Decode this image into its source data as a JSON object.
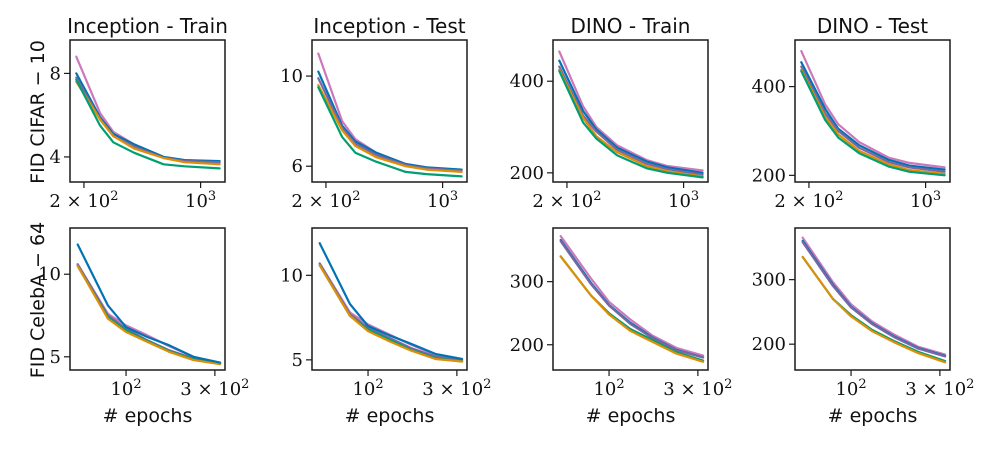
{
  "figure": {
    "row_labels": [
      "FID CIFAR − 10",
      "FID CelebA − 64"
    ],
    "xlabel": "# epochs",
    "colors": {
      "pink": "#cc78bc",
      "blue": "#0173b2",
      "purple": "#7a68a6",
      "green": "#029e73",
      "orange": "#de8f05"
    }
  },
  "chart_data": [
    {
      "id": "cifar-inception-train",
      "type": "line",
      "title": "Inception - Train",
      "xscale": "log",
      "xlim": [
        165,
        1400
      ],
      "ylim": [
        2.8,
        9.6
      ],
      "xticks": [
        {
          "v": 200,
          "label": "2 × 10²"
        },
        {
          "v": 1000,
          "label": "10³"
        }
      ],
      "yticks": [
        {
          "v": 4,
          "label": "4"
        },
        {
          "v": 8,
          "label": "8"
        }
      ],
      "x": [
        180,
        250,
        300,
        400,
        600,
        800,
        1300
      ],
      "series": [
        {
          "name": "pink",
          "color": "#cc78bc",
          "values": [
            8.8,
            6.1,
            5.2,
            4.6,
            4.0,
            3.85,
            3.7
          ]
        },
        {
          "name": "blue",
          "color": "#0173b2",
          "values": [
            8.0,
            5.9,
            5.1,
            4.6,
            4.0,
            3.85,
            3.8
          ]
        },
        {
          "name": "purple",
          "color": "#7a68a6",
          "values": [
            7.8,
            5.8,
            5.0,
            4.5,
            3.95,
            3.8,
            3.75
          ]
        },
        {
          "name": "orange",
          "color": "#de8f05",
          "values": [
            7.6,
            5.8,
            5.0,
            4.4,
            3.95,
            3.75,
            3.65
          ]
        },
        {
          "name": "green",
          "color": "#029e73",
          "values": [
            7.7,
            5.5,
            4.7,
            4.2,
            3.65,
            3.55,
            3.45
          ]
        }
      ]
    },
    {
      "id": "cifar-inception-test",
      "type": "line",
      "title": "Inception - Test",
      "xscale": "log",
      "xlim": [
        165,
        1400
      ],
      "ylim": [
        5.3,
        11.6
      ],
      "xticks": [
        {
          "v": 200,
          "label": "2 × 10²"
        },
        {
          "v": 1000,
          "label": "10³"
        }
      ],
      "yticks": [
        {
          "v": 6,
          "label": "6"
        },
        {
          "v": 10,
          "label": "10"
        }
      ],
      "x": [
        180,
        250,
        300,
        400,
        600,
        800,
        1300
      ],
      "series": [
        {
          "name": "pink",
          "color": "#cc78bc",
          "values": [
            11.0,
            8.0,
            7.2,
            6.6,
            6.1,
            5.95,
            5.8
          ]
        },
        {
          "name": "blue",
          "color": "#0173b2",
          "values": [
            10.2,
            7.8,
            7.1,
            6.6,
            6.1,
            5.95,
            5.85
          ]
        },
        {
          "name": "purple",
          "color": "#7a68a6",
          "values": [
            9.9,
            7.7,
            7.0,
            6.5,
            6.05,
            5.9,
            5.8
          ]
        },
        {
          "name": "orange",
          "color": "#de8f05",
          "values": [
            9.6,
            7.6,
            6.9,
            6.4,
            6.0,
            5.85,
            5.75
          ]
        },
        {
          "name": "green",
          "color": "#029e73",
          "values": [
            9.5,
            7.3,
            6.6,
            6.2,
            5.75,
            5.65,
            5.55
          ]
        }
      ]
    },
    {
      "id": "cifar-dino-train",
      "type": "line",
      "title": "DINO - Train",
      "xscale": "log",
      "xlim": [
        165,
        1400
      ],
      "ylim": [
        180,
        490
      ],
      "xticks": [
        {
          "v": 200,
          "label": "2 × 10²"
        },
        {
          "v": 1000,
          "label": "10³"
        }
      ],
      "yticks": [
        {
          "v": 200,
          "label": "200"
        },
        {
          "v": 400,
          "label": "400"
        }
      ],
      "x": [
        180,
        250,
        300,
        400,
        600,
        800,
        1300
      ],
      "series": [
        {
          "name": "pink",
          "color": "#cc78bc",
          "values": [
            465,
            345,
            300,
            260,
            228,
            215,
            205
          ]
        },
        {
          "name": "blue",
          "color": "#0173b2",
          "values": [
            445,
            335,
            295,
            255,
            225,
            212,
            200
          ]
        },
        {
          "name": "purple",
          "color": "#7a68a6",
          "values": [
            432,
            325,
            290,
            250,
            220,
            208,
            196
          ]
        },
        {
          "name": "orange",
          "color": "#de8f05",
          "values": [
            425,
            320,
            280,
            245,
            215,
            203,
            192
          ]
        },
        {
          "name": "green",
          "color": "#029e73",
          "values": [
            422,
            310,
            275,
            238,
            210,
            200,
            190
          ]
        }
      ]
    },
    {
      "id": "cifar-dino-test",
      "type": "line",
      "title": "DINO - Test",
      "xscale": "log",
      "xlim": [
        165,
        1400
      ],
      "ylim": [
        185,
        505
      ],
      "xticks": [
        {
          "v": 200,
          "label": "2 × 10²"
        },
        {
          "v": 1000,
          "label": "10³"
        }
      ],
      "yticks": [
        {
          "v": 200,
          "label": "200"
        },
        {
          "v": 400,
          "label": "400"
        }
      ],
      "x": [
        180,
        250,
        300,
        400,
        600,
        800,
        1300
      ],
      "series": [
        {
          "name": "pink",
          "color": "#cc78bc",
          "values": [
            480,
            360,
            315,
            275,
            240,
            228,
            218
          ]
        },
        {
          "name": "blue",
          "color": "#0173b2",
          "values": [
            455,
            350,
            305,
            268,
            235,
            222,
            213
          ]
        },
        {
          "name": "purple",
          "color": "#7a68a6",
          "values": [
            445,
            340,
            300,
            262,
            230,
            218,
            208
          ]
        },
        {
          "name": "orange",
          "color": "#de8f05",
          "values": [
            438,
            332,
            292,
            255,
            225,
            212,
            203
          ]
        },
        {
          "name": "green",
          "color": "#029e73",
          "values": [
            435,
            325,
            285,
            250,
            220,
            208,
            200
          ]
        }
      ]
    },
    {
      "id": "celeba-inception-train",
      "type": "line",
      "title": "",
      "xscale": "log",
      "xlim": [
        50,
        340
      ],
      "ylim": [
        4.2,
        12.8
      ],
      "xticks": [
        {
          "v": 100,
          "label": "10²"
        },
        {
          "v": 300,
          "label": "3 × 10²"
        }
      ],
      "yticks": [
        {
          "v": 5,
          "label": "5"
        },
        {
          "v": 10,
          "label": "10"
        }
      ],
      "x": [
        55,
        80,
        100,
        130,
        170,
        230,
        320
      ],
      "series": [
        {
          "name": "pink",
          "color": "#cc78bc",
          "values": [
            10.6,
            7.6,
            6.9,
            6.3,
            5.65,
            5.0,
            4.6
          ]
        },
        {
          "name": "purple",
          "color": "#7a68a6",
          "values": [
            10.6,
            7.5,
            6.7,
            6.0,
            5.4,
            4.9,
            4.6
          ]
        },
        {
          "name": "green",
          "color": "#029e73",
          "values": [
            10.5,
            7.4,
            6.6,
            5.95,
            5.35,
            4.85,
            4.6
          ]
        },
        {
          "name": "orange",
          "color": "#de8f05",
          "values": [
            10.5,
            7.3,
            6.5,
            5.9,
            5.3,
            4.8,
            4.55
          ]
        },
        {
          "name": "blue",
          "color": "#0173b2",
          "values": [
            11.8,
            8.1,
            6.8,
            6.2,
            5.7,
            5.0,
            4.65
          ]
        }
      ]
    },
    {
      "id": "celeba-inception-test",
      "type": "line",
      "title": "",
      "xscale": "log",
      "xlim": [
        50,
        340
      ],
      "ylim": [
        4.4,
        12.8
      ],
      "xticks": [
        {
          "v": 100,
          "label": "10²"
        },
        {
          "v": 300,
          "label": "3 × 10²"
        }
      ],
      "yticks": [
        {
          "v": 5,
          "label": "5"
        },
        {
          "v": 10,
          "label": "10"
        }
      ],
      "x": [
        55,
        80,
        100,
        130,
        170,
        230,
        320
      ],
      "series": [
        {
          "name": "pink",
          "color": "#cc78bc",
          "values": [
            10.7,
            7.8,
            7.1,
            6.5,
            5.9,
            5.3,
            5.0
          ]
        },
        {
          "name": "purple",
          "color": "#7a68a6",
          "values": [
            10.7,
            7.7,
            6.9,
            6.3,
            5.7,
            5.2,
            4.95
          ]
        },
        {
          "name": "green",
          "color": "#029e73",
          "values": [
            10.6,
            7.6,
            6.8,
            6.2,
            5.6,
            5.1,
            4.9
          ]
        },
        {
          "name": "orange",
          "color": "#de8f05",
          "values": [
            10.6,
            7.6,
            6.7,
            6.1,
            5.55,
            5.05,
            4.9
          ]
        },
        {
          "name": "blue",
          "color": "#0173b2",
          "values": [
            11.9,
            8.3,
            7.0,
            6.45,
            5.95,
            5.35,
            5.05
          ]
        }
      ]
    },
    {
      "id": "celeba-dino-train",
      "type": "line",
      "title": "",
      "xscale": "log",
      "xlim": [
        50,
        340
      ],
      "ylim": [
        160,
        385
      ],
      "xticks": [
        {
          "v": 100,
          "label": "10²"
        },
        {
          "v": 300,
          "label": "3 × 10²"
        }
      ],
      "yticks": [
        {
          "v": 200,
          "label": "200"
        },
        {
          "v": 300,
          "label": "300"
        }
      ],
      "x": [
        55,
        80,
        100,
        130,
        170,
        230,
        320
      ],
      "series": [
        {
          "name": "pink",
          "color": "#cc78bc",
          "values": [
            372,
            305,
            268,
            240,
            215,
            195,
            183
          ]
        },
        {
          "name": "blue",
          "color": "#0173b2",
          "values": [
            366,
            298,
            263,
            235,
            212,
            192,
            180
          ]
        },
        {
          "name": "purple",
          "color": "#7a68a6",
          "values": [
            364,
            296,
            262,
            233,
            211,
            191,
            180
          ]
        },
        {
          "name": "green",
          "color": "#029e73",
          "values": [
            340,
            278,
            250,
            225,
            208,
            188,
            175
          ]
        },
        {
          "name": "orange",
          "color": "#de8f05",
          "values": [
            340,
            278,
            248,
            222,
            205,
            186,
            173
          ]
        }
      ]
    },
    {
      "id": "celeba-dino-test",
      "type": "line",
      "title": "",
      "xscale": "log",
      "xlim": [
        50,
        340
      ],
      "ylim": [
        160,
        380
      ],
      "xticks": [
        {
          "v": 100,
          "label": "10²"
        },
        {
          "v": 300,
          "label": "3 × 10²"
        }
      ],
      "yticks": [
        {
          "v": 200,
          "label": "200"
        },
        {
          "v": 300,
          "label": "300"
        }
      ],
      "x": [
        55,
        80,
        100,
        130,
        170,
        230,
        320
      ],
      "series": [
        {
          "name": "pink",
          "color": "#cc78bc",
          "values": [
            365,
            296,
            262,
            235,
            215,
            196,
            184
          ]
        },
        {
          "name": "blue",
          "color": "#0173b2",
          "values": [
            360,
            292,
            258,
            232,
            212,
            194,
            182
          ]
        },
        {
          "name": "purple",
          "color": "#7a68a6",
          "values": [
            358,
            290,
            257,
            231,
            211,
            193,
            181
          ]
        },
        {
          "name": "green",
          "color": "#029e73",
          "values": [
            335,
            270,
            245,
            222,
            205,
            188,
            174
          ]
        },
        {
          "name": "orange",
          "color": "#de8f05",
          "values": [
            335,
            270,
            243,
            220,
            203,
            186,
            172
          ]
        }
      ]
    }
  ]
}
